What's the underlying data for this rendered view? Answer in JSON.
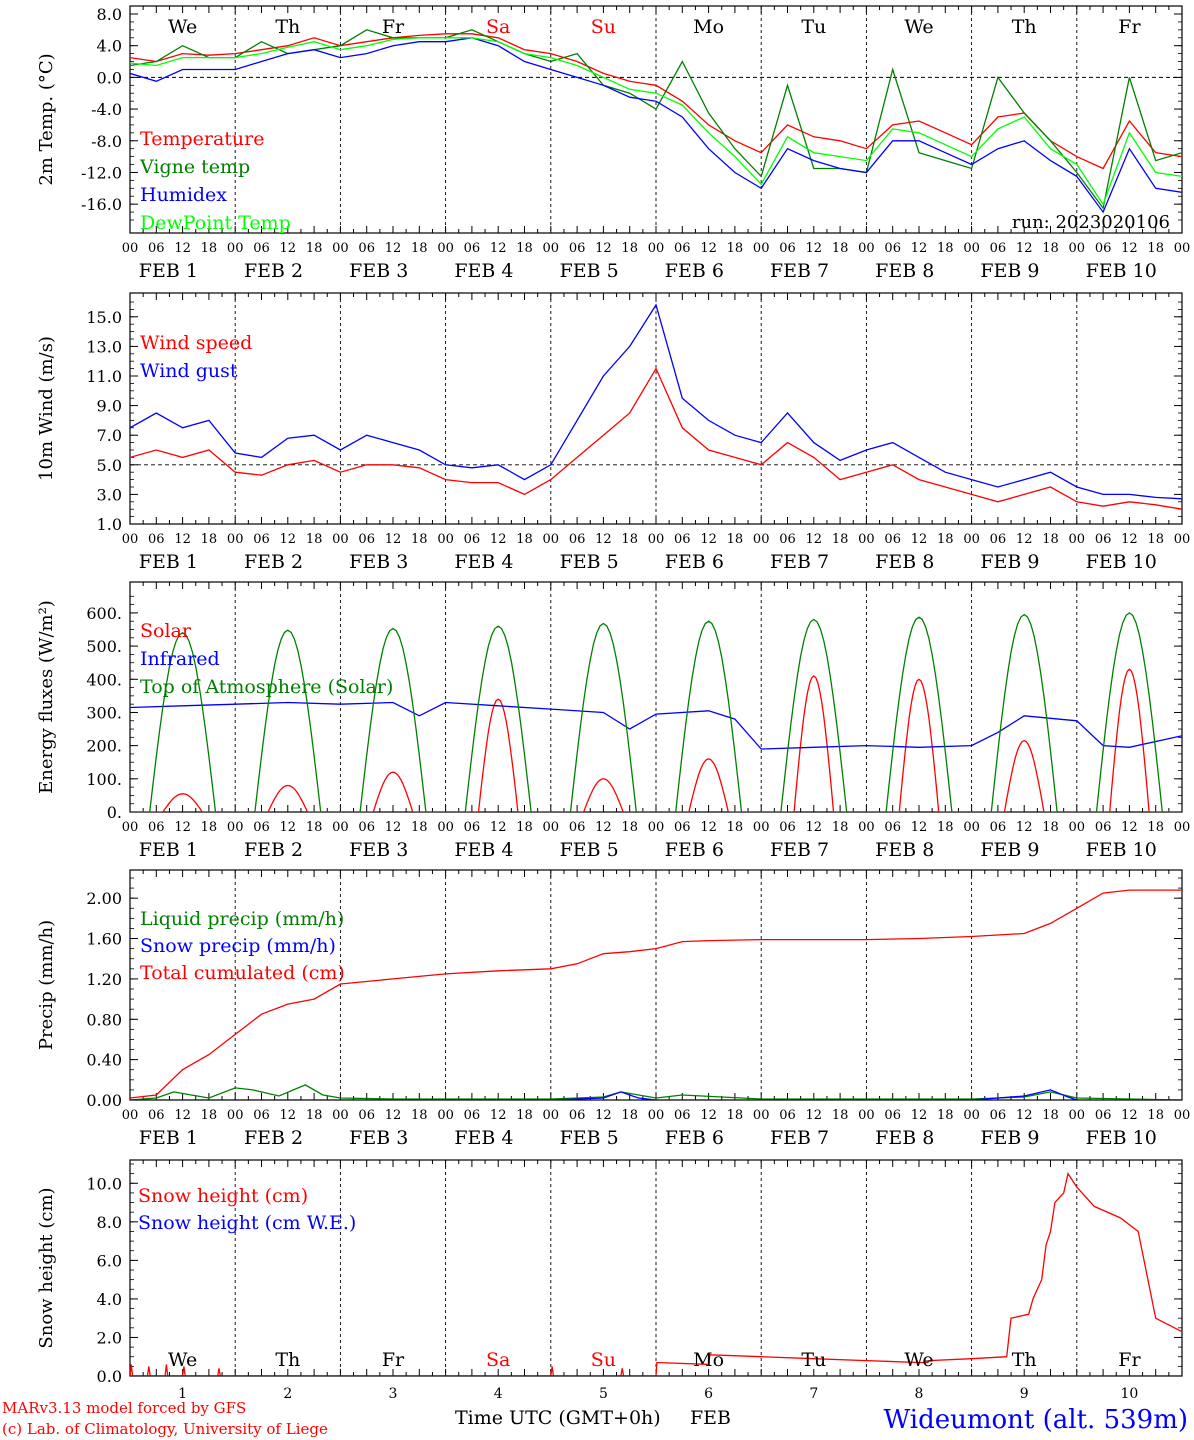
{
  "footer": {
    "credit1": "MARv3.13 model forced by GFS",
    "credit2": "(c) Lab. of Climatology, University of Liege",
    "xlabel": "Time UTC (GMT+0h)",
    "xlabel_month": "FEB",
    "station": "Wideumont (alt. 539m)"
  },
  "colors": {
    "red": "#ff0000",
    "green": "#008000",
    "blue": "#0000ff",
    "lime": "#00ff00",
    "black": "#000000"
  },
  "time_axis": {
    "hour_ticks": [
      "00",
      "06",
      "12",
      "18"
    ],
    "end_tick": "00",
    "date_labels": [
      "FEB   1",
      "FEB   2",
      "FEB   3",
      "FEB   4",
      "FEB   5",
      "FEB   6",
      "FEB   7",
      "FEB   8",
      "FEB   9",
      "FEB 10"
    ],
    "weekdays": [
      {
        "label": "We",
        "color": "#000000"
      },
      {
        "label": "Th",
        "color": "#000000"
      },
      {
        "label": "Fr",
        "color": "#000000"
      },
      {
        "label": "Sa",
        "color": "#ff0000"
      },
      {
        "label": "Su",
        "color": "#ff0000"
      },
      {
        "label": "Mo",
        "color": "#000000"
      },
      {
        "label": "Tu",
        "color": "#000000"
      },
      {
        "label": "We",
        "color": "#000000"
      },
      {
        "label": "Th",
        "color": "#000000"
      },
      {
        "label": "Fr",
        "color": "#000000"
      }
    ],
    "bottom_day_numbers": [
      "1",
      "2",
      "3",
      "4",
      "5",
      "6",
      "7",
      "8",
      "9",
      "10"
    ]
  },
  "chart_data": [
    {
      "id": "temp",
      "type": "line",
      "ylabel": "2m Temp. (°C)",
      "ylim": [
        -18,
        8
      ],
      "yticks": [
        "8.0",
        "4.0",
        "0.0",
        "-4.0",
        "-8.0",
        "-12.0",
        "-16.0"
      ],
      "ytick_values": [
        8,
        4,
        0,
        -4,
        -8,
        -12,
        -16
      ],
      "ref_line": 0,
      "run_label": "run: 2023020106",
      "series": [
        {
          "name": "Temperature",
          "color": "#ff0000",
          "x": [
            0,
            6,
            12,
            18,
            24,
            30,
            36,
            42,
            48,
            54,
            60,
            66,
            72,
            78,
            84,
            90,
            96,
            102,
            108,
            114,
            120,
            126,
            132,
            138,
            144,
            150,
            156,
            162,
            168,
            174,
            180,
            186,
            192,
            198,
            204,
            210,
            216,
            222,
            228,
            234,
            240
          ],
          "y": [
            2.5,
            2.0,
            3.0,
            2.8,
            3.0,
            3.5,
            4.0,
            5.0,
            4.0,
            4.5,
            5.0,
            5.3,
            5.5,
            5.5,
            5.0,
            3.5,
            3.0,
            2.0,
            0.5,
            -0.5,
            -1.0,
            -3.0,
            -6.0,
            -8.0,
            -9.5,
            -6.0,
            -7.5,
            -8.0,
            -9.0,
            -6.0,
            -5.5,
            -7.0,
            -8.5,
            -5.0,
            -4.5,
            -8.0,
            -10.0,
            -11.5,
            -5.5,
            -9.5,
            -10.0
          ]
        },
        {
          "name": "Vigne temp",
          "color": "#008000",
          "x": [
            0,
            6,
            12,
            18,
            24,
            30,
            36,
            42,
            48,
            54,
            60,
            66,
            72,
            78,
            84,
            90,
            96,
            102,
            108,
            114,
            120,
            126,
            132,
            138,
            144,
            150,
            156,
            162,
            168,
            174,
            180,
            186,
            192,
            198,
            204,
            210,
            216,
            222,
            228,
            234,
            240
          ],
          "y": [
            1.5,
            2.0,
            4.0,
            2.5,
            2.5,
            4.5,
            3.0,
            3.5,
            4.0,
            6.0,
            5.0,
            5.0,
            5.0,
            6.0,
            4.5,
            3.0,
            2.0,
            3.0,
            -1.0,
            -2.0,
            -4.0,
            2.0,
            -4.5,
            -9.0,
            -12.5,
            -1.0,
            -11.5,
            -11.5,
            -12.0,
            1.0,
            -9.5,
            -10.5,
            -11.5,
            0.0,
            -4.5,
            -8.0,
            -12.0,
            -16.5,
            0.0,
            -10.5,
            -9.5
          ]
        },
        {
          "name": "Humidex",
          "color": "#0000ff",
          "x": [
            0,
            6,
            12,
            18,
            24,
            30,
            36,
            42,
            48,
            54,
            60,
            66,
            72,
            78,
            84,
            90,
            96,
            102,
            108,
            114,
            120,
            126,
            132,
            138,
            144,
            150,
            156,
            162,
            168,
            174,
            180,
            186,
            192,
            198,
            204,
            210,
            216,
            222,
            228,
            234,
            240
          ],
          "y": [
            0.5,
            -0.5,
            1.0,
            1.0,
            1.0,
            2.0,
            3.0,
            3.5,
            2.5,
            3.0,
            4.0,
            4.5,
            4.5,
            5.0,
            4.0,
            2.0,
            1.0,
            0.0,
            -1.0,
            -2.5,
            -3.0,
            -5.0,
            -9.0,
            -12.0,
            -14.0,
            -9.0,
            -10.5,
            -11.5,
            -12.0,
            -8.0,
            -8.0,
            -9.5,
            -11.0,
            -9.0,
            -8.0,
            -10.5,
            -12.5,
            -17.0,
            -9.0,
            -14.0,
            -14.5
          ]
        },
        {
          "name": "DewPoint Temp",
          "color": "#00ff00",
          "x": [
            0,
            6,
            12,
            18,
            24,
            30,
            36,
            42,
            48,
            54,
            60,
            66,
            72,
            78,
            84,
            90,
            96,
            102,
            108,
            114,
            120,
            126,
            132,
            138,
            144,
            150,
            156,
            162,
            168,
            174,
            180,
            186,
            192,
            198,
            204,
            210,
            216,
            222,
            228,
            234,
            240
          ],
          "y": [
            1.8,
            1.5,
            2.5,
            2.5,
            2.5,
            3.0,
            3.8,
            4.5,
            3.5,
            4.0,
            4.8,
            5.0,
            5.0,
            5.0,
            4.5,
            3.0,
            2.5,
            1.5,
            0.0,
            -1.5,
            -2.0,
            -3.5,
            -7.0,
            -10.0,
            -13.5,
            -7.5,
            -9.5,
            -10.0,
            -10.5,
            -6.5,
            -7.0,
            -8.5,
            -10.0,
            -6.5,
            -5.0,
            -9.0,
            -11.0,
            -16.0,
            -7.0,
            -12.0,
            -12.5
          ]
        }
      ]
    },
    {
      "id": "wind",
      "type": "line",
      "ylabel": "10m Wind (m/s)",
      "ylim": [
        1.0,
        16.0
      ],
      "yticks": [
        "15.0",
        "13.0",
        "11.0",
        "9.0",
        "7.0",
        "5.0",
        "3.0",
        "1.0"
      ],
      "ytick_values": [
        15,
        13,
        11,
        9,
        7,
        5,
        3,
        1
      ],
      "ref_line": 5,
      "series": [
        {
          "name": "Wind speed",
          "color": "#ff0000",
          "x": [
            0,
            6,
            12,
            18,
            24,
            30,
            36,
            42,
            48,
            54,
            60,
            66,
            72,
            78,
            84,
            90,
            96,
            102,
            108,
            114,
            120,
            126,
            132,
            138,
            144,
            150,
            156,
            162,
            168,
            174,
            180,
            186,
            192,
            198,
            204,
            210,
            216,
            222,
            228,
            234,
            240
          ],
          "y": [
            5.5,
            6.0,
            5.5,
            6.0,
            4.5,
            4.3,
            5.0,
            5.3,
            4.5,
            5.0,
            5.0,
            4.8,
            4.0,
            3.8,
            3.8,
            3.0,
            4.0,
            5.5,
            7.0,
            8.5,
            11.5,
            7.5,
            6.0,
            5.5,
            5.0,
            6.5,
            5.5,
            4.0,
            4.5,
            5.0,
            4.0,
            3.5,
            3.0,
            2.5,
            3.0,
            3.5,
            2.5,
            2.2,
            2.5,
            2.3,
            2.0
          ]
        },
        {
          "name": "Wind gust",
          "color": "#0000ff",
          "x": [
            0,
            6,
            12,
            18,
            24,
            30,
            36,
            42,
            48,
            54,
            60,
            66,
            72,
            78,
            84,
            90,
            96,
            102,
            108,
            114,
            120,
            126,
            132,
            138,
            144,
            150,
            156,
            162,
            168,
            174,
            180,
            186,
            192,
            198,
            204,
            210,
            216,
            222,
            228,
            234,
            240
          ],
          "y": [
            7.5,
            8.5,
            7.5,
            8.0,
            5.8,
            5.5,
            6.8,
            7.0,
            6.0,
            7.0,
            6.5,
            6.0,
            5.0,
            4.8,
            5.0,
            4.0,
            5.0,
            8.0,
            11.0,
            13.0,
            15.8,
            9.5,
            8.0,
            7.0,
            6.5,
            8.5,
            6.5,
            5.3,
            6.0,
            6.5,
            5.5,
            4.5,
            4.0,
            3.5,
            4.0,
            4.5,
            3.5,
            3.0,
            3.0,
            2.8,
            2.7
          ]
        }
      ]
    },
    {
      "id": "energy",
      "type": "line",
      "ylabel": "Energy fluxes (W/m²)",
      "ylim": [
        0,
        660
      ],
      "yticks": [
        "600.",
        "500.",
        "400.",
        "300.",
        "200.",
        "100.",
        "0."
      ],
      "ytick_values": [
        600,
        500,
        400,
        300,
        200,
        100,
        0
      ],
      "series": [
        {
          "name": "Solar",
          "color": "#ff0000",
          "peak_hour": 12,
          "half_width": 4.5,
          "peaks": [
            55,
            80,
            120,
            340,
            100,
            160,
            410,
            400,
            215,
            430
          ]
        },
        {
          "name": "Infrared",
          "color": "#0000ff",
          "x": [
            0,
            12,
            24,
            36,
            48,
            60,
            66,
            72,
            84,
            96,
            108,
            114,
            120,
            132,
            138,
            144,
            156,
            168,
            180,
            192,
            198,
            204,
            216,
            222,
            228,
            240
          ],
          "y": [
            315,
            320,
            325,
            330,
            325,
            330,
            290,
            330,
            320,
            310,
            300,
            250,
            295,
            305,
            280,
            190,
            195,
            200,
            195,
            200,
            240,
            290,
            275,
            200,
            195,
            230
          ]
        },
        {
          "name": "Top of Atmosphere (Solar)",
          "color": "#008000",
          "peak_hour": 12,
          "half_width": 7.5,
          "peaks": [
            540,
            548,
            553,
            560,
            568,
            575,
            580,
            587,
            595,
            600
          ]
        }
      ]
    },
    {
      "id": "precip",
      "type": "line",
      "ylabel": "Precip (mm/h)",
      "ylim": [
        0,
        2.2
      ],
      "yticks": [
        "2.00",
        "1.60",
        "1.20",
        "0.80",
        "0.40",
        "0.00"
      ],
      "ytick_values": [
        2.0,
        1.6,
        1.2,
        0.8,
        0.4,
        0.0
      ],
      "series": [
        {
          "name": "Liquid precip (mm/h)",
          "color": "#008000",
          "x": [
            0,
            6,
            10,
            14,
            18,
            24,
            28,
            34,
            40,
            44,
            48,
            60,
            72,
            96,
            108,
            112,
            120,
            126,
            144,
            168,
            192,
            204,
            210,
            216,
            240
          ],
          "y": [
            0,
            0.02,
            0.08,
            0.05,
            0.02,
            0.12,
            0.1,
            0.04,
            0.15,
            0.05,
            0.02,
            0.01,
            0.01,
            0.01,
            0.03,
            0.08,
            0.02,
            0.05,
            0.01,
            0.01,
            0.01,
            0.03,
            0.08,
            0.02,
            0.0
          ]
        },
        {
          "name": "Snow precip (mm/h)",
          "color": "#0000ff",
          "x": [
            0,
            24,
            48,
            72,
            96,
            108,
            112,
            116,
            120,
            192,
            204,
            210,
            214,
            216,
            240
          ],
          "y": [
            0,
            0,
            0,
            0,
            0,
            0.02,
            0.08,
            0.02,
            0.0,
            0.0,
            0.04,
            0.1,
            0.03,
            0.0,
            0.0
          ]
        },
        {
          "name": "Total cumulated (cm)",
          "color": "#ff0000",
          "x": [
            0,
            6,
            12,
            18,
            24,
            30,
            36,
            42,
            48,
            60,
            72,
            84,
            96,
            102,
            108,
            114,
            120,
            126,
            132,
            144,
            168,
            180,
            192,
            204,
            210,
            216,
            222,
            228,
            240
          ],
          "y": [
            0.02,
            0.05,
            0.3,
            0.45,
            0.65,
            0.85,
            0.95,
            1.0,
            1.15,
            1.2,
            1.25,
            1.28,
            1.3,
            1.35,
            1.45,
            1.47,
            1.5,
            1.57,
            1.58,
            1.59,
            1.59,
            1.6,
            1.62,
            1.65,
            1.75,
            1.9,
            2.05,
            2.08,
            2.08
          ]
        }
      ]
    },
    {
      "id": "snow",
      "type": "line",
      "ylabel": "Snow height (cm)",
      "ylim": [
        0,
        11
      ],
      "yticks": [
        "10.0",
        "8.0",
        "6.0",
        "4.0",
        "2.0",
        "0.0"
      ],
      "ytick_values": [
        10,
        8,
        6,
        4,
        2,
        0
      ],
      "series": [
        {
          "name": "Snow height (cm)",
          "color": "#ff0000",
          "x": [
            0,
            0.3,
            0.6,
            1,
            4,
            4.3,
            4.6,
            5,
            8,
            8.3,
            8.6,
            9,
            12,
            12.3,
            12.6,
            13,
            20,
            20.3,
            20.6,
            21,
            96,
            96.3,
            96.6,
            97,
            112,
            112.3,
            112.6,
            113,
            120,
            120.2,
            132,
            132.3,
            144,
            156,
            168,
            180,
            182,
            182.3,
            192,
            200,
            201,
            205,
            206,
            208,
            209,
            210,
            211,
            213,
            214,
            216,
            220,
            226,
            230,
            234,
            240
          ],
          "y": [
            0,
            0.6,
            0,
            0,
            0,
            0.5,
            0,
            0,
            0,
            0.6,
            0,
            0,
            0,
            0.5,
            0,
            0,
            0,
            0.4,
            0,
            0,
            0,
            0.5,
            0,
            0,
            0,
            0.4,
            0,
            0,
            0,
            0.7,
            0.6,
            1.1,
            1.0,
            0.9,
            0.8,
            0.7,
            0.7,
            0.8,
            0.9,
            1.0,
            3.0,
            3.2,
            4.0,
            5.0,
            6.8,
            7.5,
            9.0,
            9.5,
            10.5,
            9.8,
            8.8,
            8.2,
            7.5,
            3.0,
            2.3
          ]
        },
        {
          "name": "Snow height (cm W.E.)",
          "color": "#0000ff",
          "x": [
            0,
            240
          ],
          "y": [
            0,
            0
          ]
        }
      ]
    }
  ]
}
